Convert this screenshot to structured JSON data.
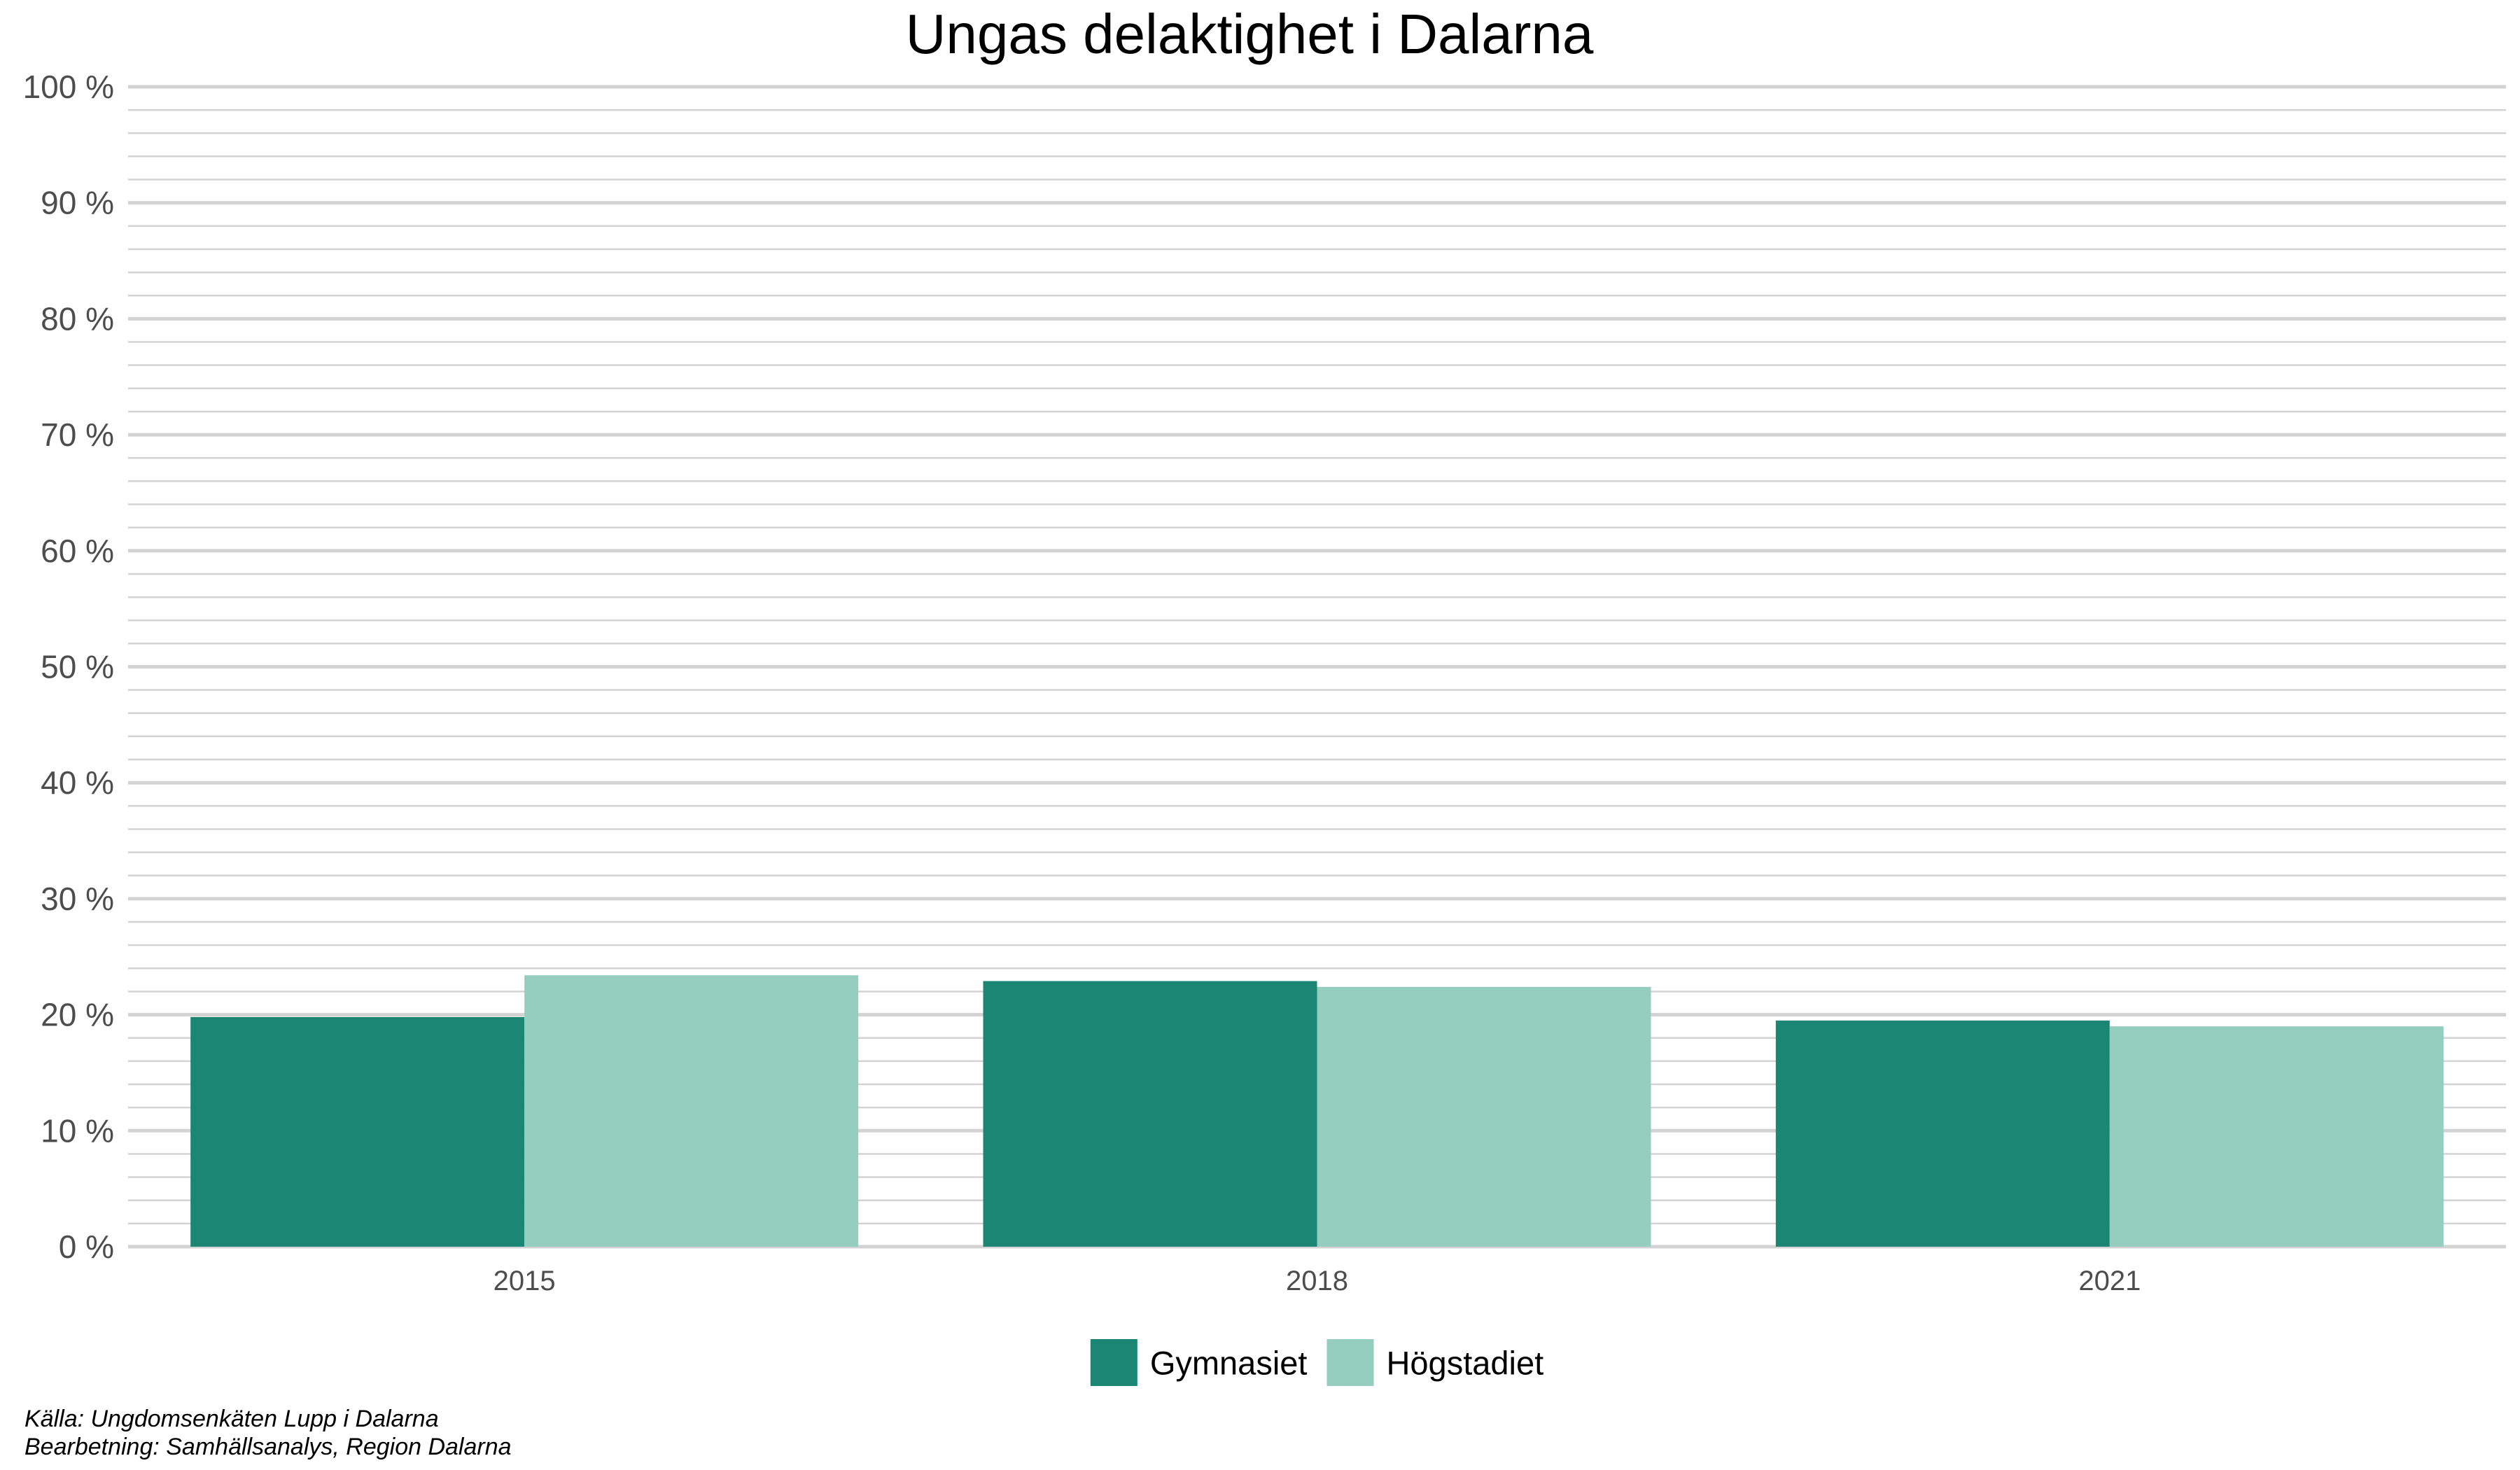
{
  "chart_data": {
    "type": "bar",
    "title": "Ungas delaktighet i Dalarna",
    "xlabel": "",
    "ylabel": "",
    "categories": [
      "2015",
      "2018",
      "2021"
    ],
    "series": [
      {
        "name": "Gymnasiet",
        "values": [
          19.8,
          22.9,
          19.5
        ],
        "color": "#1a8673"
      },
      {
        "name": "Högstadiet",
        "values": [
          23.4,
          22.4,
          19.0
        ],
        "color": "#95cdbf"
      }
    ],
    "ylim": [
      0,
      100
    ],
    "yticks": [
      {
        "value": 0,
        "label": "0 %"
      },
      {
        "value": 10,
        "label": "10 %"
      },
      {
        "value": 20,
        "label": "20 %"
      },
      {
        "value": 30,
        "label": "30 %"
      },
      {
        "value": 40,
        "label": "40 %"
      },
      {
        "value": 50,
        "label": "50 %"
      },
      {
        "value": 60,
        "label": "60 %"
      },
      {
        "value": 70,
        "label": "70 %"
      },
      {
        "value": 80,
        "label": "80 %"
      },
      {
        "value": 90,
        "label": "90 %"
      },
      {
        "value": 100,
        "label": "100 %"
      }
    ],
    "minor_grid_step": 2,
    "grid": true,
    "legend_position": "bottom-center",
    "grid_color": "#d3d3d3",
    "tick_color": "#4d4d4d"
  },
  "caption": {
    "source": "Källa: Ungdomsenkäten Lupp i Dalarna",
    "processing": "Bearbetning: Samhällsanalys, Region Dalarna"
  }
}
